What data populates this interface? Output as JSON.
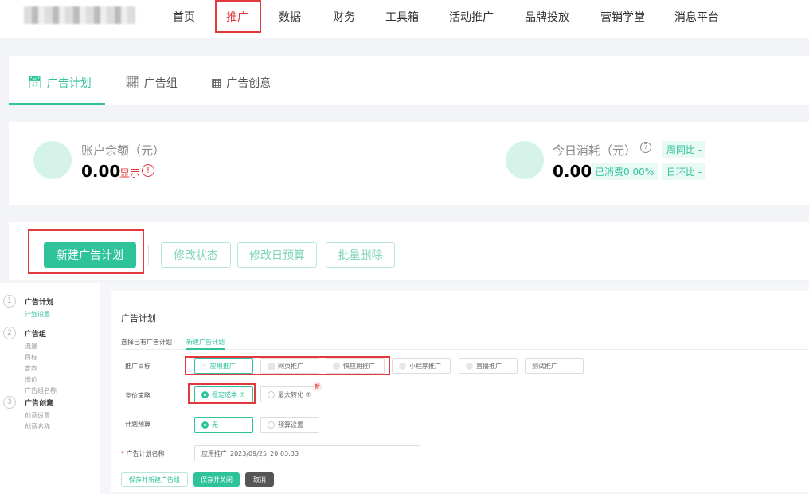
{
  "nav": {
    "items": [
      "首页",
      "推广",
      "数据",
      "财务",
      "工具箱",
      "活动推广",
      "品牌投放",
      "营销学堂",
      "消息平台"
    ],
    "active": "推广"
  },
  "tabs": [
    {
      "label": "广告计划",
      "icon": "calendar-icon"
    },
    {
      "label": "广告组",
      "icon": "line-chart-icon"
    },
    {
      "label": "广告创意",
      "icon": "grid-icon"
    }
  ],
  "stats": {
    "balance_label": "账户余额（元）",
    "balance_value": "0.00",
    "balance_show": "显示",
    "today_label": "今日消耗（元）",
    "today_value": "0.00",
    "consumed": "已消费0.00%",
    "week": "周同比 -",
    "day": "日环比 -"
  },
  "actions": {
    "new": "新建广告计划",
    "status": "修改状态",
    "budget": "修改日预算",
    "delete": "批量删除"
  },
  "steps": [
    {
      "num": "1",
      "title": "广告计划",
      "items": [
        "计划设置"
      ]
    },
    {
      "num": "2",
      "title": "广告组",
      "items": [
        "流量",
        "目标",
        "定向",
        "出价",
        "广告组名称"
      ]
    },
    {
      "num": "3",
      "title": "广告创意",
      "items": [
        "创意设置",
        "创意名称"
      ]
    }
  ],
  "form": {
    "title": "广告计划",
    "subtabs": [
      "选择已有广告计划",
      "新建广告计划"
    ],
    "target_label": "推广目标",
    "targets": [
      "应用推广",
      "网页推广",
      "快应用推广",
      "小程序推广",
      "直播推广",
      "测试推广"
    ],
    "bid_label": "竞价策略",
    "bids": [
      "稳定成本 ⑦",
      "最大转化 ⑦"
    ],
    "new_badge": "新",
    "budget_label": "计划预算",
    "budgets": [
      "无",
      "预算设置"
    ],
    "name_label": "广告计划名称",
    "name_value": "应用推广_2023/09/25_20:03:33",
    "btn_save_new": "保存并新建广告组",
    "btn_save_close": "保存并关闭",
    "btn_cancel": "取消"
  },
  "colors": {
    "accent": "#2ec39b",
    "highlight": "#e4393c"
  }
}
